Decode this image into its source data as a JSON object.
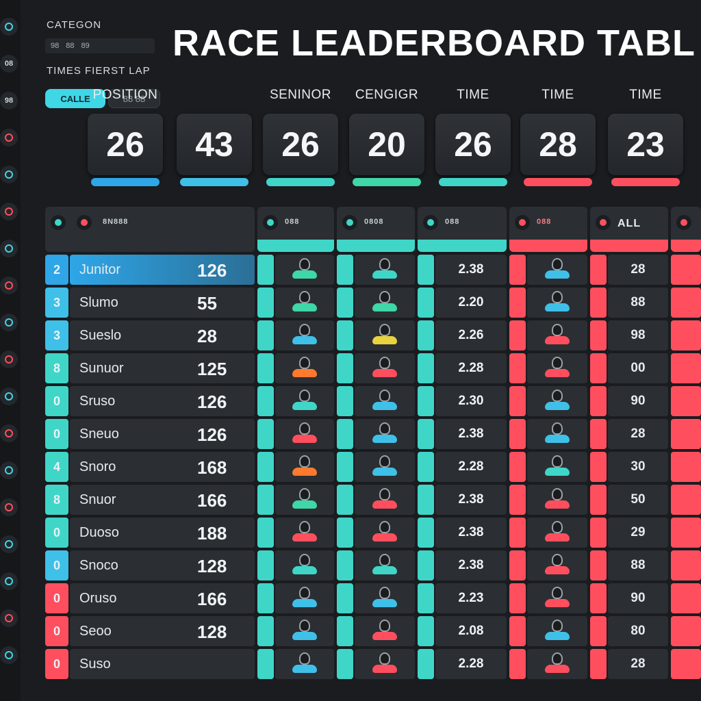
{
  "header": {
    "title": "RACE LEADERBOARD TABL",
    "category_label": "CATEGON",
    "category_value": [
      "98",
      "88",
      "89"
    ],
    "sub_label": "TIMES FIERST LAP",
    "chip_active": "CALLE",
    "chip_inactive": "88 88"
  },
  "rail": {
    "items": [
      {
        "icon": "ring-icon",
        "color": "#3fd6e6"
      },
      {
        "text": "08"
      },
      {
        "text": "98"
      },
      {
        "icon": "ring-icon",
        "color": "#ff4f5e"
      },
      {
        "icon": "ring-icon",
        "color": "#3fd6e6"
      },
      {
        "icon": "ring-icon",
        "color": "#ff4f5e"
      },
      {
        "icon": "ring-icon",
        "color": "#3fd6e6"
      },
      {
        "icon": "ring-icon",
        "color": "#ff4f5e"
      },
      {
        "icon": "ring-icon",
        "color": "#3fd6e6"
      },
      {
        "icon": "ring-icon",
        "color": "#ff4f5e"
      },
      {
        "icon": "ring-icon",
        "color": "#3fd6e6"
      },
      {
        "icon": "ring-icon",
        "color": "#ff4f5e"
      },
      {
        "icon": "ring-icon",
        "color": "#3fd6e6"
      },
      {
        "icon": "ring-icon",
        "color": "#ff4f5e"
      },
      {
        "icon": "ring-icon",
        "color": "#3fd6e6"
      },
      {
        "icon": "ring-icon",
        "color": "#3fd6e6"
      },
      {
        "icon": "ring-icon",
        "color": "#ff4f5e"
      },
      {
        "icon": "ring-icon",
        "color": "#3fd6e6"
      }
    ]
  },
  "stats": [
    {
      "label": "POSITION",
      "value": "26",
      "bar": "#2ea6e8"
    },
    {
      "label": "",
      "value": "43",
      "bar": "#3fc0e8"
    },
    {
      "label": "SENINOR",
      "value": "26",
      "bar": "#3fd6c8"
    },
    {
      "label": "CENGIGR",
      "value": "20",
      "bar": "#3fd6a8"
    },
    {
      "label": "TIME",
      "value": "26",
      "bar": "#3fd6c8"
    },
    {
      "label": "TIME",
      "value": "28",
      "bar": "#ff4f5e"
    },
    {
      "label": "TIME",
      "value": "23",
      "bar": "#ff4f5e"
    }
  ],
  "table": {
    "head": [
      {
        "dot": "#3fd6c8",
        "dot2": "#ff4f5e",
        "text": "8N888"
      },
      {
        "dot": "#3fd6c8",
        "text": "088"
      },
      {
        "dot": "#3fd6c8",
        "text": "0808"
      },
      {
        "dot": "#3fd6c8",
        "text": "088"
      },
      {
        "dot": "#ff4f5e",
        "text": "088"
      },
      {
        "dot": "#ff4f5e",
        "text": "ALL"
      },
      {
        "dot": "#ff4f5e",
        "text": ""
      }
    ],
    "rows": [
      {
        "pos": "2",
        "name": "Junitor",
        "score": "126",
        "time": "2.38",
        "right": "28",
        "highlight": true,
        "pos_color": "#2ea6e8",
        "kart1": "#3fd6a8",
        "kart2": "#3fd6c8",
        "kart3": "#3fc0e8"
      },
      {
        "pos": "3",
        "name": "Slumo",
        "score": "55",
        "time": "2.20",
        "right": "88",
        "pos_color": "#3fc0e8",
        "kart1": "#3fd6a8",
        "kart2": "#3fd6a8",
        "kart3": "#3fc0e8"
      },
      {
        "pos": "3",
        "name": "Sueslo",
        "score": "28",
        "time": "2.26",
        "right": "98",
        "pos_color": "#3fc0e8",
        "kart1": "#3fc0e8",
        "kart2": "#e8d23f",
        "kart3": "#ff4f5e"
      },
      {
        "pos": "8",
        "name": "Sunuor",
        "score": "125",
        "time": "2.28",
        "right": "00",
        "pos_color": "#3fd6c8",
        "kart1": "#ff7a2e",
        "kart2": "#ff4f5e",
        "kart3": "#ff4f5e"
      },
      {
        "pos": "0",
        "name": "Sruso",
        "score": "126",
        "time": "2.30",
        "right": "90",
        "pos_color": "#3fd6c8",
        "kart1": "#3fd6c8",
        "kart2": "#3fc0e8",
        "kart3": "#3fc0e8"
      },
      {
        "pos": "0",
        "name": "Sneuo",
        "score": "126",
        "time": "2.38",
        "right": "28",
        "pos_color": "#3fd6c8",
        "kart1": "#ff4f5e",
        "kart2": "#3fc0e8",
        "kart3": "#3fc0e8"
      },
      {
        "pos": "4",
        "name": "Snoro",
        "score": "168",
        "time": "2.28",
        "right": "30",
        "pos_color": "#3fd6c8",
        "kart1": "#ff7a2e",
        "kart2": "#3fc0e8",
        "kart3": "#3fd6c8"
      },
      {
        "pos": "8",
        "name": "Snuor",
        "score": "166",
        "time": "2.38",
        "right": "50",
        "pos_color": "#3fd6c8",
        "kart1": "#3fd6a8",
        "kart2": "#ff4f5e",
        "kart3": "#ff4f5e"
      },
      {
        "pos": "0",
        "name": "Duoso",
        "score": "188",
        "time": "2.38",
        "right": "29",
        "pos_color": "#3fd6c8",
        "kart1": "#ff4f5e",
        "kart2": "#ff4f5e",
        "kart3": "#ff4f5e"
      },
      {
        "pos": "0",
        "name": "Snoco",
        "score": "128",
        "time": "2.38",
        "right": "88",
        "pos_color": "#3fc0e8",
        "kart1": "#3fd6c8",
        "kart2": "#3fd6c8",
        "kart3": "#ff4f5e"
      },
      {
        "pos": "0",
        "name": "Oruso",
        "score": "166",
        "time": "2.23",
        "right": "90",
        "pos_color": "#ff4f5e",
        "kart1": "#3fc0e8",
        "kart2": "#3fc0e8",
        "kart3": "#ff4f5e"
      },
      {
        "pos": "0",
        "name": "Seoo",
        "score": "128",
        "time": "2.08",
        "right": "80",
        "pos_color": "#ff4f5e",
        "kart1": "#3fc0e8",
        "kart2": "#ff4f5e",
        "kart3": "#3fc0e8"
      },
      {
        "pos": "0",
        "name": "Suso",
        "score": "",
        "time": "2.28",
        "right": "28",
        "pos_color": "#ff4f5e",
        "kart1": "#3fc0e8",
        "kart2": "#ff4f5e",
        "kart3": "#ff4f5e"
      }
    ]
  },
  "colors": {
    "teal": "#3fd6c8",
    "red": "#ff4f5e",
    "blue": "#2ea6e8",
    "panel": "#2b2f33",
    "bg": "#1a1c1f"
  }
}
